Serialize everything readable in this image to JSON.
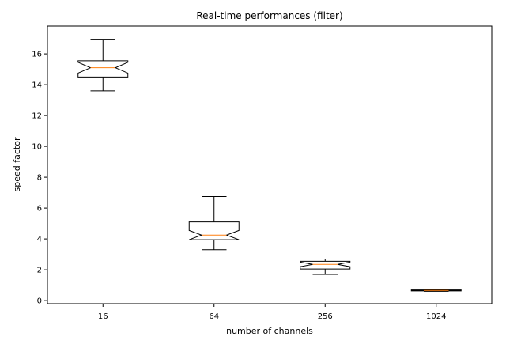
{
  "chart_data": {
    "type": "box",
    "title": "Real-time performances (filter)",
    "xlabel": "number of channels",
    "ylabel": "speed factor",
    "categories": [
      "16",
      "64",
      "256",
      "1024"
    ],
    "ylim": [
      -0.2,
      17.8
    ],
    "yticks": [
      0,
      2,
      4,
      6,
      8,
      10,
      12,
      14,
      16
    ],
    "notched": true,
    "grid": false,
    "boxes": [
      {
        "category": "16",
        "whisker_low": 13.6,
        "q1": 14.5,
        "notch_low": 14.75,
        "median": 15.1,
        "notch_high": 15.45,
        "q3": 15.55,
        "whisker_high": 16.95
      },
      {
        "category": "64",
        "whisker_low": 3.3,
        "q1": 3.95,
        "notch_low": 3.95,
        "median": 4.25,
        "notch_high": 4.55,
        "q3": 5.1,
        "whisker_high": 6.75
      },
      {
        "category": "256",
        "whisker_low": 1.7,
        "q1": 2.05,
        "notch_low": 2.2,
        "median": 2.35,
        "notch_high": 2.5,
        "q3": 2.55,
        "whisker_high": 2.7
      },
      {
        "category": "1024",
        "whisker_low": 0.6,
        "q1": 0.63,
        "notch_low": 0.64,
        "median": 0.66,
        "notch_high": 0.68,
        "q3": 0.69,
        "whisker_high": 0.7
      }
    ],
    "colors": {
      "box": "#000000",
      "median": "#ff7f0e",
      "axes": "#000000"
    }
  }
}
